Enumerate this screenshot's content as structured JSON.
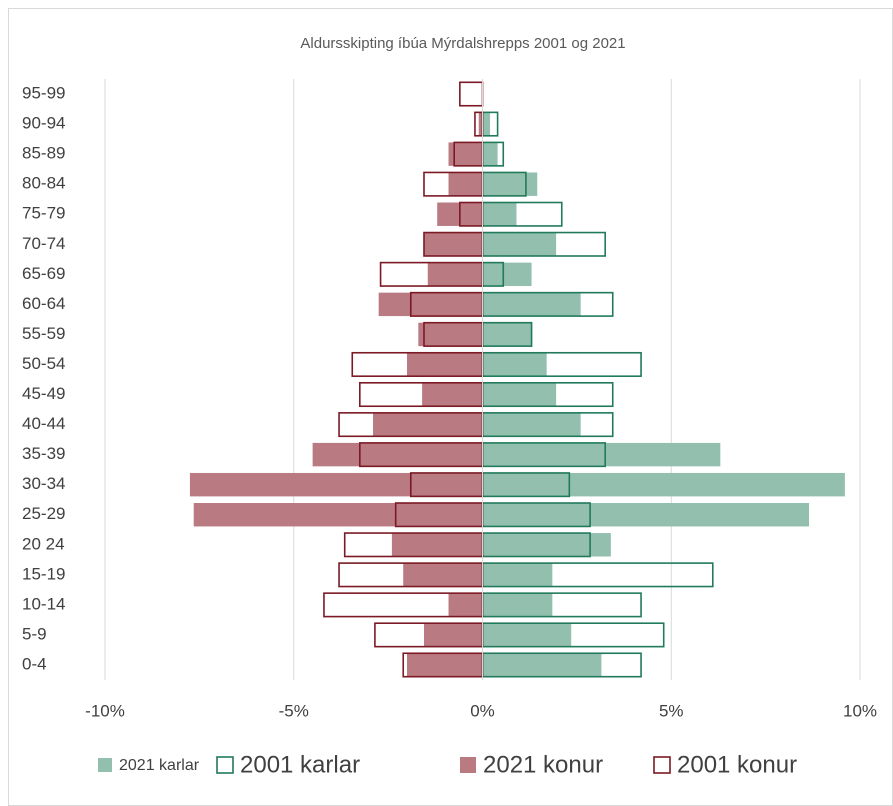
{
  "chart_data": {
    "type": "pyramid",
    "title": "Aldursskipting íbúa Mýrdalshrepps 2001 og 2021",
    "categories": [
      "0-4",
      "5-9",
      "10-14",
      "15-19",
      "20 24",
      "25-29",
      "30-34",
      "35-39",
      "40-44",
      "45-49",
      "50-54",
      "55-59",
      "60-64",
      "65-69",
      "70-74",
      "75-79",
      "80-84",
      "85-89",
      "90-94",
      "95-99"
    ],
    "series": [
      {
        "name": "2021 karlar",
        "color": "#93c0ae",
        "filled": true,
        "values": [
          3.15,
          2.35,
          1.85,
          1.85,
          3.4,
          8.65,
          9.6,
          6.3,
          2.6,
          1.95,
          1.7,
          1.3,
          2.6,
          1.3,
          1.95,
          0.9,
          1.45,
          0.4,
          0.2,
          0
        ]
      },
      {
        "name": "2001 karlar",
        "color": "#217a5b",
        "filled": false,
        "values": [
          4.2,
          4.8,
          4.2,
          6.1,
          2.85,
          2.85,
          2.3,
          3.25,
          3.45,
          3.45,
          4.2,
          1.3,
          3.45,
          0.55,
          3.25,
          2.1,
          1.15,
          0.55,
          0.4,
          0
        ]
      },
      {
        "name": "2021 konur",
        "color": "#b97a82",
        "filled": true,
        "values": [
          -2.0,
          -1.55,
          -0.9,
          -2.1,
          -2.4,
          -7.65,
          -7.75,
          -4.5,
          -2.9,
          -1.6,
          -2.0,
          -1.7,
          -2.75,
          -1.45,
          -1.55,
          -1.2,
          -0.9,
          -0.9,
          -0.1,
          0
        ]
      },
      {
        "name": "2001 konur",
        "color": "#7b1a25",
        "filled": false,
        "values": [
          -2.1,
          -2.85,
          -4.2,
          -3.8,
          -3.65,
          -2.3,
          -1.9,
          -3.25,
          -3.8,
          -3.25,
          -3.45,
          -1.55,
          -1.9,
          -2.7,
          -1.55,
          -0.6,
          -1.55,
          -0.75,
          -0.2,
          -0.6
        ]
      }
    ],
    "xlim": [
      -10,
      10
    ],
    "xticks": [
      {
        "value": -10,
        "label": "-10%"
      },
      {
        "value": -5,
        "label": "-5%"
      },
      {
        "value": 0,
        "label": "0%"
      },
      {
        "value": 5,
        "label": "5%"
      },
      {
        "value": 10,
        "label": "10%"
      }
    ],
    "grid": true,
    "legend": "bottom"
  }
}
